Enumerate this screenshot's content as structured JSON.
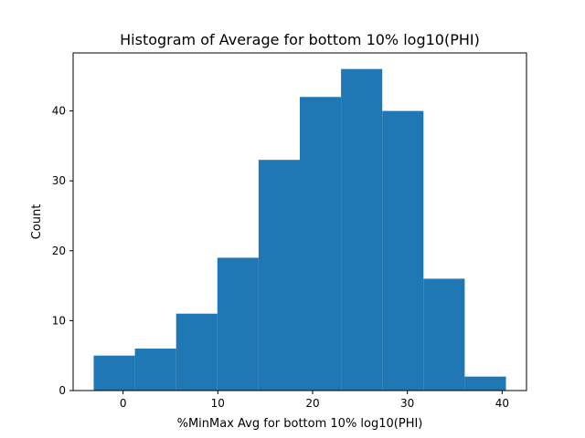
{
  "chart_data": {
    "type": "bar",
    "subtype": "histogram",
    "title": "Histogram of Average for bottom 10% log10(PHI)",
    "xlabel": "%MinMax Avg for bottom 10% log10(PHI)",
    "ylabel": "Count",
    "bin_edges": [
      -3.1,
      1.25,
      5.6,
      9.95,
      14.3,
      18.65,
      23.0,
      27.35,
      31.7,
      36.05,
      40.4
    ],
    "counts": [
      5,
      6,
      11,
      19,
      33,
      42,
      46,
      40,
      16,
      2
    ],
    "xlim": [
      -5.27,
      42.57
    ],
    "ylim": [
      0,
      48.3
    ],
    "xticks": [
      0,
      10,
      20,
      30,
      40
    ],
    "xtick_labels": [
      "0",
      "10",
      "20",
      "30",
      "40"
    ],
    "yticks": [
      0,
      10,
      20,
      30,
      40
    ],
    "ytick_labels": [
      "0",
      "10",
      "20",
      "30",
      "40"
    ],
    "bar_color": "#1f77b4",
    "grid": false,
    "legend": "none"
  }
}
